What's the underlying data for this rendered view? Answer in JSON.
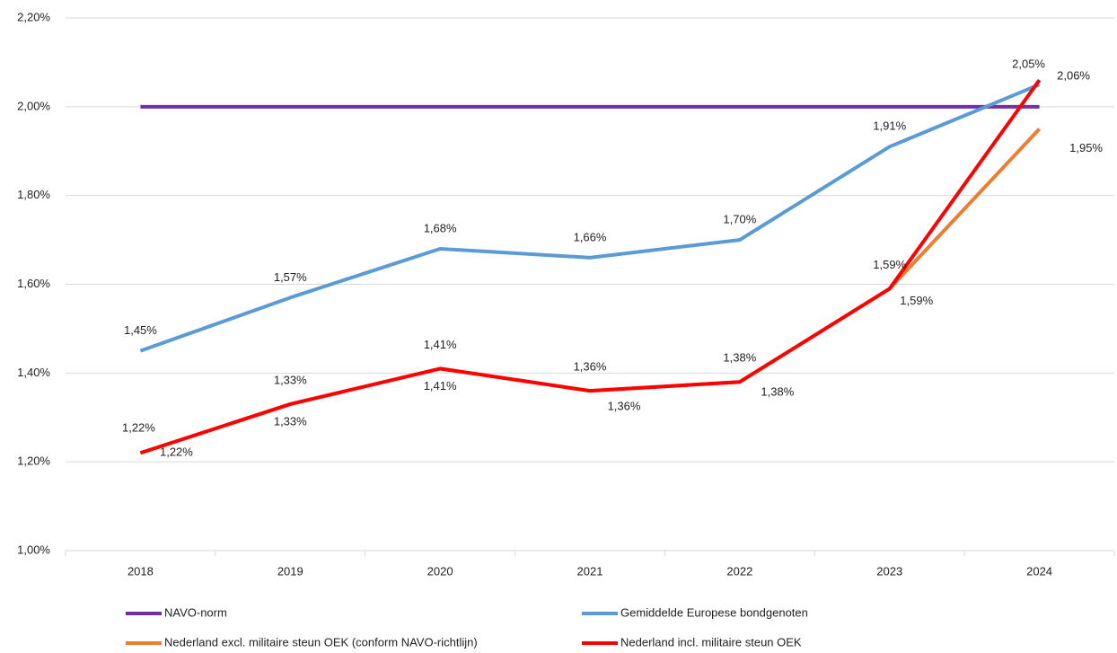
{
  "chart_data": {
    "type": "line",
    "categories": [
      "2018",
      "2019",
      "2020",
      "2021",
      "2022",
      "2023",
      "2024"
    ],
    "ylim": [
      1.0,
      2.2
    ],
    "yticks": [
      {
        "value": 1.0,
        "label": "1,00%"
      },
      {
        "value": 1.2,
        "label": "1,20%"
      },
      {
        "value": 1.4,
        "label": "1,40%"
      },
      {
        "value": 1.6,
        "label": "1,60%"
      },
      {
        "value": 1.8,
        "label": "1,80%"
      },
      {
        "value": 2.0,
        "label": "2,00%"
      },
      {
        "value": 2.2,
        "label": "2,20%"
      }
    ],
    "grid": true,
    "legend": "bottom",
    "series": [
      {
        "name": "NAVO-norm",
        "color": "#7030a0",
        "values": [
          2.0,
          2.0,
          2.0,
          2.0,
          2.0,
          2.0,
          2.0
        ]
      },
      {
        "name": "Gemiddelde Europese bondgenoten",
        "color": "#5b9bd5",
        "values": [
          1.45,
          1.57,
          1.68,
          1.66,
          1.7,
          1.91,
          2.05
        ],
        "value_labels": [
          "1,45%",
          "1,57%",
          "1,68%",
          "1,66%",
          "1,70%",
          "1,91%",
          "2,05%"
        ]
      },
      {
        "name": "Nederland excl. militaire steun OEK (conform NAVO-richtlijn)",
        "color": "#ed7d31",
        "values": [
          1.22,
          1.33,
          1.41,
          1.36,
          1.38,
          1.59,
          1.95
        ],
        "value_labels": [
          "1,22%",
          "1,33%",
          "1,41%",
          "1,36%",
          "1,38%",
          "1,59%",
          "1,95%"
        ]
      },
      {
        "name": "Nederland incl. militaire steun OEK",
        "color": "#ff0000",
        "values": [
          1.22,
          1.33,
          1.41,
          1.36,
          1.38,
          1.59,
          2.06
        ],
        "value_labels": [
          "1,22%",
          "1,33%",
          "1,41%",
          "1,36%",
          "1,38%",
          "1,59%",
          "2,06%"
        ]
      }
    ]
  }
}
